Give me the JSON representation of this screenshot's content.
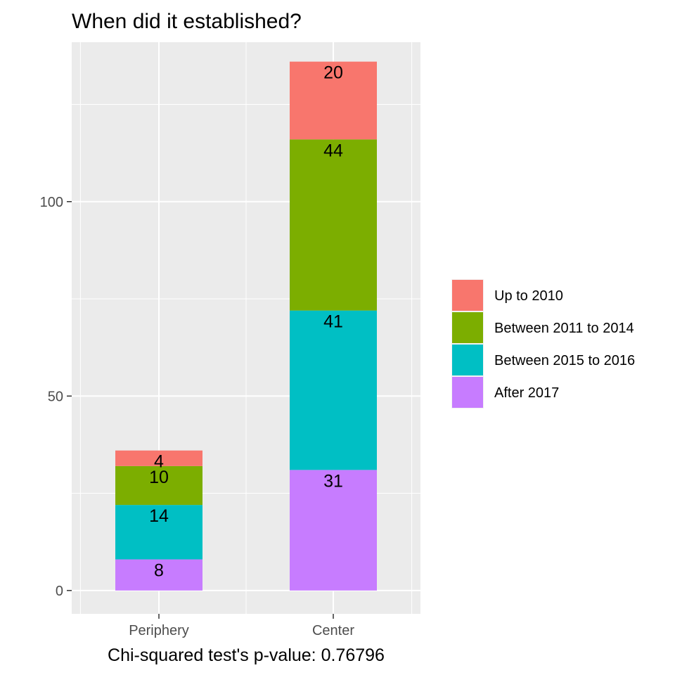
{
  "chart_data": {
    "type": "bar",
    "stacked": true,
    "title": "When did it established?",
    "caption": "Chi-squared test's p-value: 0.76796",
    "xlabel": "",
    "ylabel": "",
    "categories": [
      "Periphery",
      "Center"
    ],
    "ylim": [
      -6,
      141
    ],
    "yticks": [
      0,
      50,
      100
    ],
    "grid": true,
    "legend_position": "right",
    "series": [
      {
        "name": "After 2017",
        "values": [
          8,
          31
        ],
        "color": "#C77CFF"
      },
      {
        "name": "Between 2015 to 2016",
        "values": [
          14,
          41
        ],
        "color": "#00BFC4"
      },
      {
        "name": "Between 2011 to 2014",
        "values": [
          10,
          44
        ],
        "color": "#7CAE00"
      },
      {
        "name": "Up to 2010",
        "values": [
          4,
          20
        ],
        "color": "#F8766D"
      }
    ],
    "legend_order": [
      "Up to 2010",
      "Between 2011 to 2014",
      "Between 2015 to 2016",
      "After 2017"
    ],
    "panel_background": "#EBEBEB",
    "grid_color": "#FFFFFF"
  }
}
